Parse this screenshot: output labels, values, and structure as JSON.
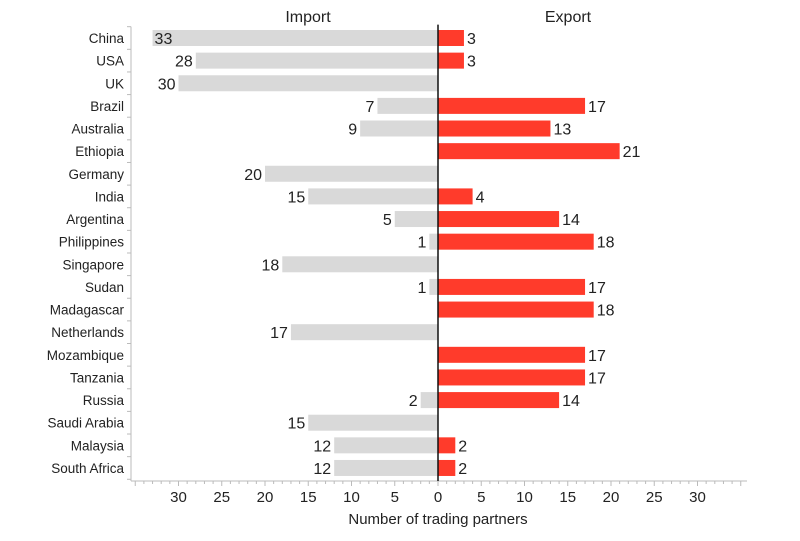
{
  "chart_data": {
    "type": "bar",
    "orientation": "horizontal-diverging",
    "xlabel": "Number of trading partners",
    "series": [
      {
        "name": "Import",
        "color": "#d9d9d9",
        "values": [
          33,
          28,
          30,
          7,
          9,
          0,
          20,
          15,
          5,
          1,
          18,
          1,
          0,
          17,
          0,
          0,
          2,
          15,
          12,
          12
        ]
      },
      {
        "name": "Export",
        "color": "#ff3b2b",
        "values": [
          3,
          3,
          0,
          17,
          13,
          21,
          0,
          4,
          14,
          18,
          0,
          17,
          18,
          0,
          17,
          17,
          14,
          0,
          2,
          2
        ]
      }
    ],
    "categories": [
      "China",
      "USA",
      "UK",
      "Brazil",
      "Australia",
      "Ethiopia",
      "Germany",
      "India",
      "Argentina",
      "Philippines",
      "Singapore",
      "Sudan",
      "Madagascar",
      "Netherlands",
      "Mozambique",
      "Tanzania",
      "Russia",
      "Saudi Arabia",
      "Malaysia",
      "South Africa"
    ],
    "xticks": [
      30,
      25,
      20,
      15,
      10,
      5,
      0,
      5,
      10,
      15,
      20,
      25,
      30
    ],
    "xlim": [
      -35,
      35
    ],
    "grid": false
  }
}
